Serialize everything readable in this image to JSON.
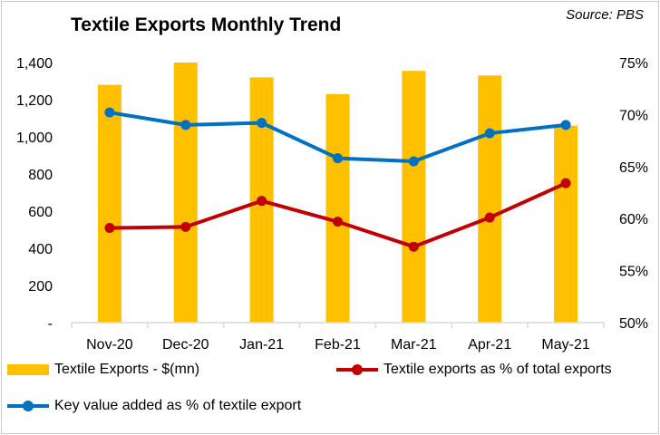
{
  "title": "Textile Exports Monthly Trend",
  "source": "Source: PBS",
  "colors": {
    "bar": "#FFC000",
    "export_share_line": "#C00000",
    "value_added_line": "#0070C0",
    "axis": "#D9D9D9"
  },
  "chart_data": {
    "type": "bar",
    "title": "Textile Exports Monthly Trend",
    "categories": [
      "Nov-20",
      "Dec-20",
      "Jan-21",
      "Feb-21",
      "Mar-21",
      "Apr-21",
      "May-21"
    ],
    "y_left": {
      "ylim": [
        0,
        1400
      ],
      "ticks": [
        0,
        200,
        400,
        600,
        800,
        1000,
        1200,
        1400
      ],
      "tick_labels": [
        "-",
        "200",
        "400",
        "600",
        "800",
        "1,000",
        "1,200",
        "1,400"
      ]
    },
    "y_right": {
      "ylim": [
        50,
        75
      ],
      "ticks": [
        50,
        55,
        60,
        65,
        70,
        75
      ],
      "tick_labels": [
        "50%",
        "55%",
        "60%",
        "65%",
        "70%",
        "75%"
      ]
    },
    "series": [
      {
        "name": "Textile Exports - $(mn)",
        "type": "bar",
        "axis": "left",
        "values": [
          1280,
          1400,
          1320,
          1230,
          1355,
          1330,
          1060
        ]
      },
      {
        "name": "Textile exports as % of total exports",
        "type": "line",
        "axis": "right",
        "values": [
          59.1,
          59.2,
          61.7,
          59.7,
          57.3,
          60.1,
          63.4
        ]
      },
      {
        "name": "Key value added as % of textile export",
        "type": "line",
        "axis": "right",
        "values": [
          70.2,
          69.0,
          69.2,
          65.8,
          65.5,
          68.2,
          69.0
        ]
      }
    ],
    "grid": false,
    "legend_position": "bottom"
  }
}
